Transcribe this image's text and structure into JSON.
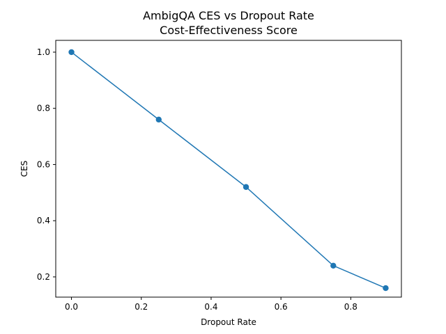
{
  "chart_data": {
    "type": "line",
    "title": "AmbigQA CES vs Dropout Rate",
    "subtitle": "Cost-Effectiveness Score",
    "xlabel": "Dropout Rate",
    "ylabel": "CES",
    "xlim": [
      -0.045,
      0.945
    ],
    "ylim": [
      0.128,
      1.042
    ],
    "x_ticks": [
      0.0,
      0.2,
      0.4,
      0.6,
      0.8
    ],
    "x_tick_labels": [
      "0.0",
      "0.2",
      "0.4",
      "0.6",
      "0.8"
    ],
    "y_ticks": [
      0.2,
      0.4,
      0.6,
      0.8,
      1.0
    ],
    "y_tick_labels": [
      "0.2",
      "0.4",
      "0.6",
      "0.8",
      "1.0"
    ],
    "grid": false,
    "x": [
      0.0,
      0.25,
      0.5,
      0.75,
      0.9
    ],
    "series": [
      {
        "values": [
          1.0,
          0.76,
          0.52,
          0.24,
          0.16
        ],
        "color": "#1f77b4",
        "marker": "circle"
      }
    ]
  }
}
